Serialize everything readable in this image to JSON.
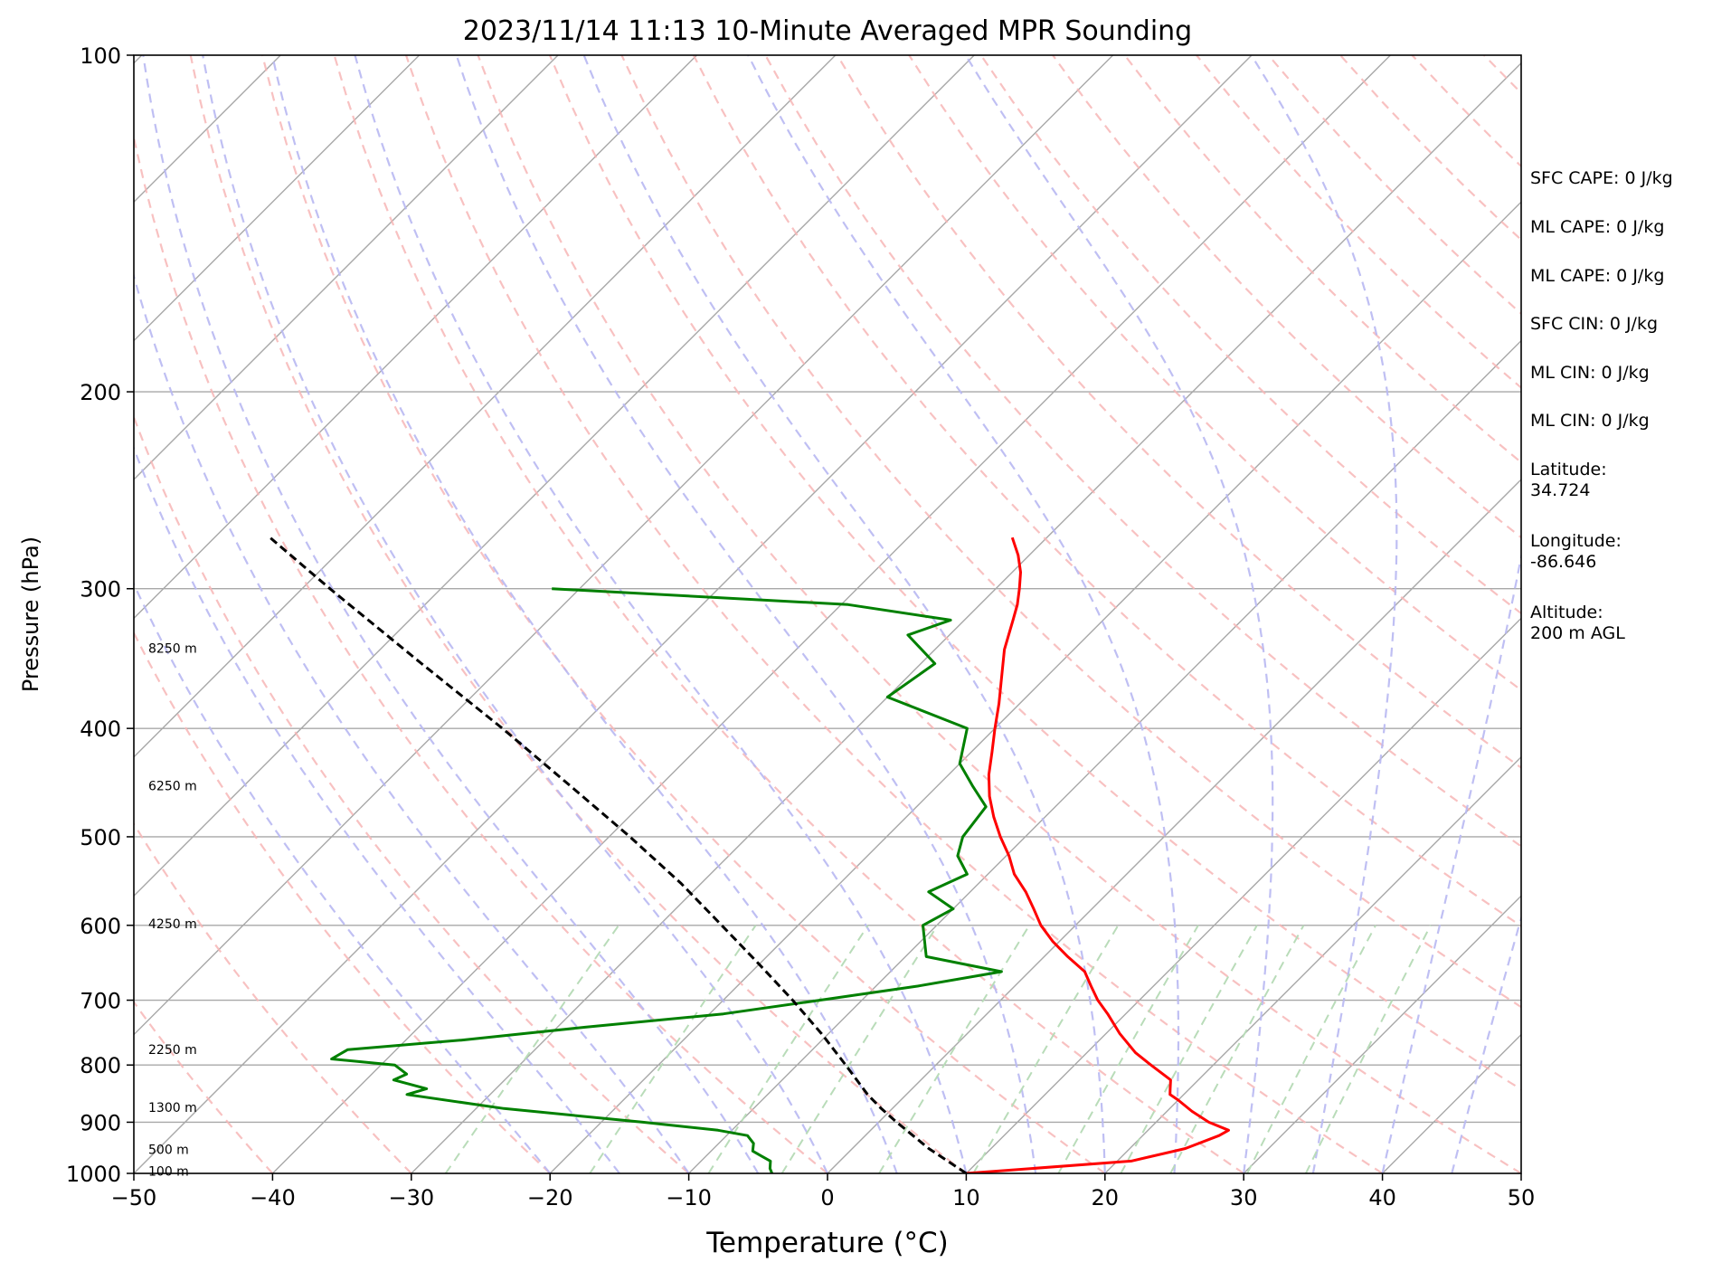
{
  "chart_data": {
    "type": "line",
    "title": "2023/11/14 11:13 10-Minute Averaged MPR Sounding",
    "xlabel": "Temperature (°C)",
    "ylabel": "Pressure (hPa)",
    "xlim": [
      -50,
      50
    ],
    "ylim": [
      1000,
      100
    ],
    "yscale": "log",
    "skew": true,
    "xticks": [
      "−50",
      "−40",
      "−30",
      "−20",
      "−10",
      "0",
      "10",
      "20",
      "30",
      "40",
      "50"
    ],
    "yticks": [
      "100",
      "200",
      "300",
      "400",
      "500",
      "600",
      "700",
      "800",
      "900",
      "1000"
    ],
    "grid": true,
    "height_labels": [
      {
        "p": 995,
        "label": "100 m"
      },
      {
        "p": 952,
        "label": "500 m"
      },
      {
        "p": 873,
        "label": "1300 m"
      },
      {
        "p": 775,
        "label": "2250 m"
      },
      {
        "p": 598,
        "label": "4250 m"
      },
      {
        "p": 450,
        "label": "6250 m"
      },
      {
        "p": 339,
        "label": "8250 m"
      }
    ],
    "series": [
      {
        "kind": "temperature",
        "color": "#ff0000",
        "p": [
          1000,
          975,
          950,
          925,
          915,
          900,
          880,
          860,
          850,
          840,
          825,
          800,
          780,
          750,
          720,
          700,
          680,
          660,
          640,
          620,
          600,
          580,
          560,
          540,
          520,
          500,
          480,
          460,
          440,
          420,
          400,
          380,
          360,
          340,
          320,
          310,
          300,
          290,
          280,
          270
        ],
        "t": [
          10,
          21,
          24,
          25.5,
          25.8,
          23.8,
          21.8,
          20,
          19,
          18.6,
          18,
          15.5,
          13.5,
          11,
          8.7,
          7,
          5.5,
          4,
          1.7,
          -0.5,
          -2.5,
          -4.2,
          -6,
          -8.1,
          -9.8,
          -11.8,
          -13.7,
          -15.5,
          -17.1,
          -18.5,
          -20,
          -21.5,
          -23.2,
          -25,
          -26.5,
          -27.3,
          -28.3,
          -29.4,
          -30.8,
          -32.5
        ]
      },
      {
        "kind": "dewpoint",
        "color": "#008000",
        "p": [
          1000,
          990,
          975,
          965,
          955,
          940,
          925,
          915,
          900,
          875,
          850,
          840,
          825,
          815,
          800,
          790,
          775,
          760,
          740,
          720,
          700,
          680,
          660,
          640,
          600,
          580,
          560,
          540,
          520,
          500,
          470,
          450,
          430,
          400,
          375,
          350,
          330,
          320,
          310,
          300
        ],
        "td": [
          -4,
          -4.5,
          -5,
          -6,
          -7,
          -7.5,
          -8.5,
          -11,
          -17,
          -28,
          -36,
          -35,
          -38,
          -37.5,
          -39,
          -44,
          -43.5,
          -36,
          -28,
          -19,
          -13,
          -7,
          -2,
          -8.5,
          -11,
          -10,
          -13,
          -11.5,
          -13.5,
          -14.5,
          -15,
          -17.5,
          -20,
          -22,
          -30,
          -29,
          -33,
          -31,
          -39.5,
          -62
        ]
      },
      {
        "kind": "parcel",
        "color": "#000000",
        "p": [
          1000,
          950,
          900,
          875,
          850,
          800,
          750,
          700,
          650,
          600,
          550,
          500,
          450,
          400,
          350,
          300,
          270
        ],
        "t": [
          10,
          5.5,
          1.3,
          -0.8,
          -2.8,
          -6.5,
          -10.5,
          -15,
          -20,
          -25.5,
          -31.5,
          -38.5,
          -46.5,
          -55.5,
          -66,
          -78,
          -86
        ]
      }
    ]
  },
  "info": {
    "lines": [
      "SFC CAPE: 0 J/kg",
      "ML CAPE: 0 J/kg",
      "ML CAPE: 0 J/kg",
      "SFC CIN: 0 J/kg",
      "ML CIN: 0 J/kg",
      "ML CIN: 0 J/kg"
    ],
    "latitude_label": "Latitude:",
    "latitude_value": "34.724",
    "longitude_label": "Longitude:",
    "longitude_value": "-86.646",
    "altitude_label": "Altitude:",
    "altitude_value": "200 m AGL"
  },
  "colors": {
    "temperature": "#ff0000",
    "dewpoint": "#008000",
    "parcel": "#000000",
    "isotherm": "#a8a8a8",
    "dry_adiabat": "#f7b6b6",
    "moist_adiabat": "#b8b8f2",
    "mixing_ratio": "#b9dcb9"
  }
}
